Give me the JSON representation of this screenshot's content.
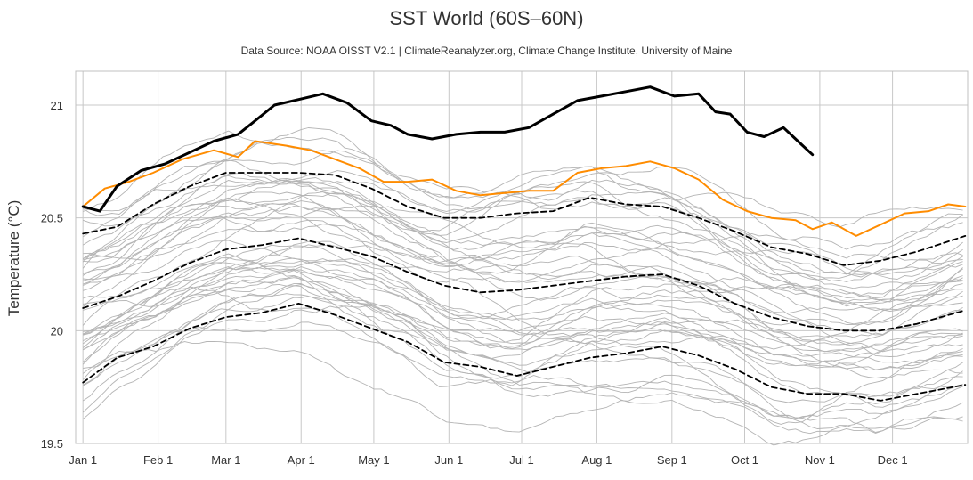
{
  "chart_data": {
    "type": "line",
    "title": "SST World (60S–60N)",
    "subtitle": "Data Source: NOAA OISST V2.1 | ClimateReanalyzer.org, Climate Change Institute, University of Maine",
    "xlabel": "",
    "ylabel": "Temperature (°C)",
    "ylim": [
      19.5,
      21.15
    ],
    "yticks": [
      19.5,
      20,
      20.5,
      21
    ],
    "xticks": [
      "Jan 1",
      "Feb 1",
      "Mar 1",
      "Apr 1",
      "May 1",
      "Jun 1",
      "Jul 1",
      "Aug 1",
      "Sep 1",
      "Oct 1",
      "Nov 1",
      "Dec 1"
    ],
    "xtick_days": [
      1,
      32,
      60,
      91,
      121,
      152,
      182,
      213,
      244,
      274,
      305,
      335
    ],
    "xlim": [
      -2,
      366
    ],
    "grid": true,
    "legend": "none",
    "x_unit": "day of year",
    "series": [
      {
        "style": "black-thick",
        "color": "#000000",
        "x": [
          1,
          8,
          15,
          25,
          35,
          45,
          55,
          65,
          72,
          80,
          92,
          100,
          110,
          120,
          128,
          135,
          145,
          155,
          165,
          175,
          185,
          195,
          205,
          215,
          225,
          235,
          245,
          255,
          262,
          268,
          275,
          282,
          290,
          297,
          302
        ],
        "values": [
          20.55,
          20.53,
          20.64,
          20.71,
          20.74,
          20.79,
          20.84,
          20.87,
          20.93,
          21.0,
          21.03,
          21.05,
          21.01,
          20.93,
          20.91,
          20.87,
          20.85,
          20.87,
          20.88,
          20.88,
          20.9,
          20.96,
          21.02,
          21.04,
          21.06,
          21.08,
          21.04,
          21.05,
          20.97,
          20.96,
          20.88,
          20.86,
          20.9,
          20.83,
          20.78
        ]
      },
      {
        "style": "orange",
        "color": "#ff8c00",
        "x": [
          1,
          10,
          20,
          30,
          42,
          55,
          65,
          72,
          85,
          95,
          105,
          115,
          125,
          135,
          145,
          155,
          165,
          175,
          185,
          195,
          205,
          215,
          225,
          235,
          245,
          255,
          265,
          275,
          285,
          295,
          302,
          310,
          320,
          330,
          340,
          350,
          358,
          365
        ],
        "values": [
          20.55,
          20.63,
          20.66,
          20.7,
          20.76,
          20.8,
          20.77,
          20.84,
          20.82,
          20.8,
          20.76,
          20.72,
          20.66,
          20.66,
          20.67,
          20.62,
          20.6,
          20.61,
          20.62,
          20.62,
          20.7,
          20.72,
          20.73,
          20.75,
          20.72,
          20.67,
          20.58,
          20.53,
          20.5,
          20.49,
          20.45,
          20.48,
          20.42,
          20.47,
          20.52,
          20.53,
          20.56,
          20.55
        ]
      },
      {
        "style": "black-dashed",
        "color": "#000000",
        "x": [
          1,
          15,
          30,
          45,
          60,
          75,
          90,
          105,
          120,
          135,
          150,
          165,
          180,
          195,
          210,
          225,
          240,
          255,
          270,
          285,
          300,
          315,
          330,
          345,
          365
        ],
        "values": [
          20.43,
          20.46,
          20.56,
          20.64,
          20.7,
          20.7,
          20.7,
          20.69,
          20.63,
          20.55,
          20.5,
          20.5,
          20.52,
          20.53,
          20.59,
          20.56,
          20.55,
          20.5,
          20.44,
          20.37,
          20.34,
          20.29,
          20.31,
          20.35,
          20.42
        ]
      },
      {
        "style": "black-dashed",
        "color": "#000000",
        "x": [
          1,
          15,
          30,
          45,
          60,
          75,
          90,
          105,
          120,
          135,
          150,
          165,
          180,
          195,
          210,
          225,
          240,
          255,
          270,
          285,
          300,
          315,
          330,
          345,
          365
        ],
        "values": [
          20.1,
          20.15,
          20.22,
          20.3,
          20.36,
          20.38,
          20.41,
          20.37,
          20.33,
          20.26,
          20.2,
          20.17,
          20.18,
          20.2,
          20.22,
          20.24,
          20.25,
          20.2,
          20.12,
          20.06,
          20.02,
          20.0,
          20.0,
          20.03,
          20.09
        ]
      },
      {
        "style": "black-dashed",
        "color": "#000000",
        "x": [
          1,
          15,
          30,
          45,
          60,
          75,
          90,
          105,
          120,
          135,
          150,
          165,
          180,
          195,
          210,
          225,
          240,
          255,
          270,
          285,
          300,
          315,
          330,
          345,
          365
        ],
        "values": [
          19.77,
          19.88,
          19.93,
          20.01,
          20.06,
          20.08,
          20.12,
          20.07,
          20.01,
          19.95,
          19.86,
          19.84,
          19.8,
          19.84,
          19.88,
          19.9,
          19.93,
          19.89,
          19.83,
          19.75,
          19.72,
          19.72,
          19.69,
          19.72,
          19.76
        ]
      }
    ]
  }
}
